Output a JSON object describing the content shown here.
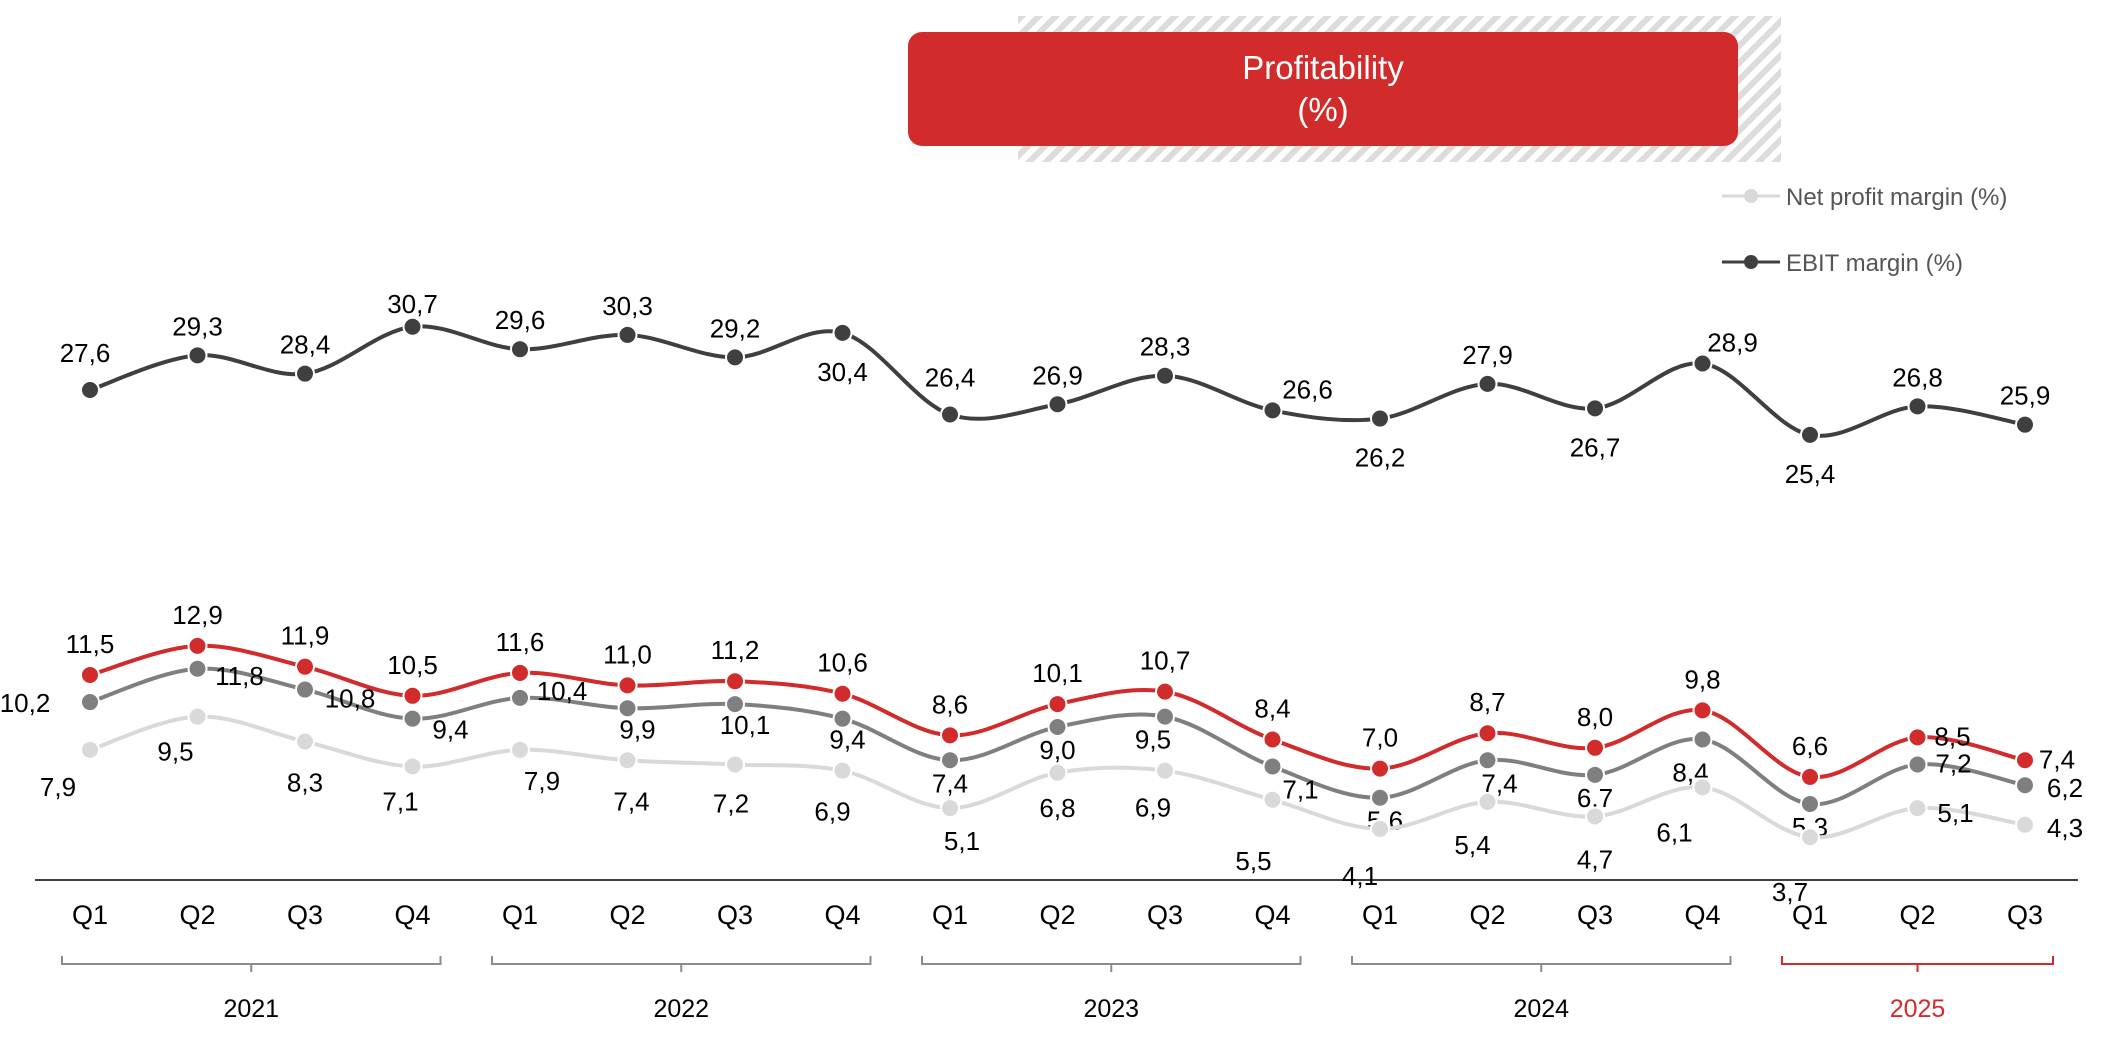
{
  "chart_data": {
    "type": "line",
    "title": "Profitability",
    "subtitle": "(%)",
    "quarters": [
      "Q1",
      "Q2",
      "Q3",
      "Q4",
      "Q1",
      "Q2",
      "Q3",
      "Q4",
      "Q1",
      "Q2",
      "Q3",
      "Q4",
      "Q1",
      "Q2",
      "Q3",
      "Q4",
      "Q1",
      "Q2",
      "Q3"
    ],
    "years": [
      {
        "label": "2021",
        "start": 0,
        "end": 3,
        "color": "#000000"
      },
      {
        "label": "2022",
        "start": 4,
        "end": 7,
        "color": "#000000"
      },
      {
        "label": "2023",
        "start": 8,
        "end": 11,
        "color": "#000000"
      },
      {
        "label": "2024",
        "start": 12,
        "end": 15,
        "color": "#000000"
      },
      {
        "label": "2025",
        "start": 16,
        "end": 18,
        "color": "#d22b2b"
      }
    ],
    "series": [
      {
        "name": "EBIT margin (%)",
        "color": "#3f3f3f",
        "values": [
          27.6,
          29.3,
          28.4,
          30.7,
          29.6,
          30.3,
          29.2,
          30.4,
          26.4,
          26.9,
          28.3,
          26.6,
          26.2,
          27.9,
          26.7,
          28.9,
          25.4,
          26.8,
          25.9
        ],
        "labels": [
          "27,6",
          "29,3",
          "28,4",
          "30,7",
          "29,6",
          "30,3",
          "29,2",
          "30,4",
          "26,4",
          "26,9",
          "28,3",
          "26,6",
          "26,2",
          "27,9",
          "26,7",
          "28,9",
          "25,4",
          "26,8",
          "25,9"
        ]
      },
      {
        "name": "",
        "color": "#d22b2b",
        "values": [
          11.5,
          12.9,
          11.9,
          10.5,
          11.6,
          11.0,
          11.2,
          10.6,
          8.6,
          10.1,
          10.7,
          8.4,
          7.0,
          8.7,
          8.0,
          9.8,
          6.6,
          8.5,
          7.4
        ],
        "labels": [
          "11,5",
          "12,9",
          "11,9",
          "10,5",
          "11,6",
          "11,0",
          "11,2",
          "10,6",
          "8,6",
          "10,1",
          "10,7",
          "8,4",
          "7,0",
          "8,7",
          "8,0",
          "9,8",
          "6,6",
          "8,5",
          "7,4"
        ]
      },
      {
        "name": "",
        "color": "#7f7f7f",
        "values": [
          10.2,
          11.8,
          10.8,
          9.4,
          10.4,
          9.9,
          10.1,
          9.4,
          7.4,
          9.0,
          9.5,
          7.1,
          5.6,
          7.4,
          6.7,
          8.4,
          5.3,
          7.2,
          6.2
        ],
        "labels": [
          "10,2",
          "11,8",
          "10,8",
          "9,4",
          "10,4",
          "9,9",
          "10,1",
          "9,4",
          "7,4",
          "9,0",
          "9,5",
          "7,1",
          "5,6",
          "7,4",
          "6,7",
          "8,4",
          "5,3",
          "7,2",
          "6,2"
        ]
      },
      {
        "name": "Net profit margin (%)",
        "color": "#d9d9d9",
        "values": [
          7.9,
          9.5,
          8.3,
          7.1,
          7.9,
          7.4,
          7.2,
          6.9,
          5.1,
          6.8,
          6.9,
          5.5,
          4.1,
          5.4,
          4.7,
          6.1,
          3.7,
          5.1,
          4.3
        ],
        "labels": [
          "7,9",
          "9,5",
          "8,3",
          "7,1",
          "7,9",
          "7,4",
          "7,2",
          "6,9",
          "5,1",
          "6,8",
          "6,9",
          "5,5",
          "4,1",
          "5,4",
          "4,7",
          "6,1",
          "3,7",
          "5,1",
          "4,3"
        ]
      }
    ],
    "legend": [
      "Net profit margin (%)",
      "EBIT margin (%)"
    ],
    "legend_position": "top-right"
  }
}
